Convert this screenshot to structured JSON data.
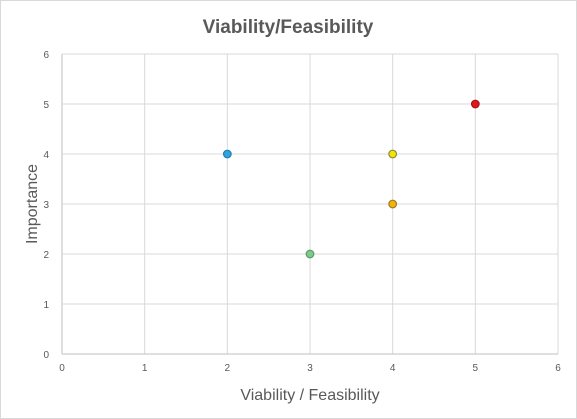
{
  "chart_data": {
    "type": "scatter",
    "title": "Viability/Feasibility",
    "xlabel": "Viability / Feasibility",
    "ylabel": "Importance",
    "xlim": [
      0,
      6
    ],
    "ylim": [
      0,
      6
    ],
    "x_ticks": [
      "0",
      "1",
      "2",
      "3",
      "4",
      "5",
      "6"
    ],
    "y_ticks": [
      "0",
      "1",
      "2",
      "3",
      "4",
      "5",
      "6"
    ],
    "grid": true,
    "legend": "none",
    "points": [
      {
        "x": 2,
        "y": 4,
        "color": "#2ea3dc",
        "stroke": "#1f7fb0"
      },
      {
        "x": 3,
        "y": 2,
        "color": "#7fc98a",
        "stroke": "#5a9a6a"
      },
      {
        "x": 4,
        "y": 4,
        "color": "#f2e600",
        "stroke": "#8c8a3c"
      },
      {
        "x": 4,
        "y": 3,
        "color": "#f4b400",
        "stroke": "#9a7a2a"
      },
      {
        "x": 5,
        "y": 5,
        "color": "#e8121a",
        "stroke": "#9a1c1c"
      }
    ]
  }
}
